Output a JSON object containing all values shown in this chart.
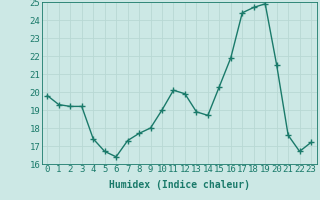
{
  "xlabel": "Humidex (Indice chaleur)",
  "x": [
    0,
    1,
    2,
    3,
    4,
    5,
    6,
    7,
    8,
    9,
    10,
    11,
    12,
    13,
    14,
    15,
    16,
    17,
    18,
    19,
    20,
    21,
    22,
    23
  ],
  "y": [
    19.8,
    19.3,
    19.2,
    19.2,
    17.4,
    16.7,
    16.4,
    17.3,
    17.7,
    18.0,
    19.0,
    20.1,
    19.9,
    18.9,
    18.7,
    20.3,
    21.9,
    24.4,
    24.7,
    24.9,
    21.5,
    17.6,
    16.7,
    17.2
  ],
  "line_color": "#1a7a6a",
  "marker": "+",
  "marker_size": 4,
  "bg_color": "#cce8e5",
  "grid_color": "#b8d8d4",
  "tick_color": "#1a7a6a",
  "ylim": [
    16,
    25
  ],
  "yticks": [
    16,
    17,
    18,
    19,
    20,
    21,
    22,
    23,
    24,
    25
  ],
  "xticks": [
    0,
    1,
    2,
    3,
    4,
    5,
    6,
    7,
    8,
    9,
    10,
    11,
    12,
    13,
    14,
    15,
    16,
    17,
    18,
    19,
    20,
    21,
    22,
    23
  ],
  "xlim": [
    -0.5,
    23.5
  ],
  "xlabel_fontsize": 7,
  "tick_fontsize": 6.5,
  "linewidth": 1.0
}
